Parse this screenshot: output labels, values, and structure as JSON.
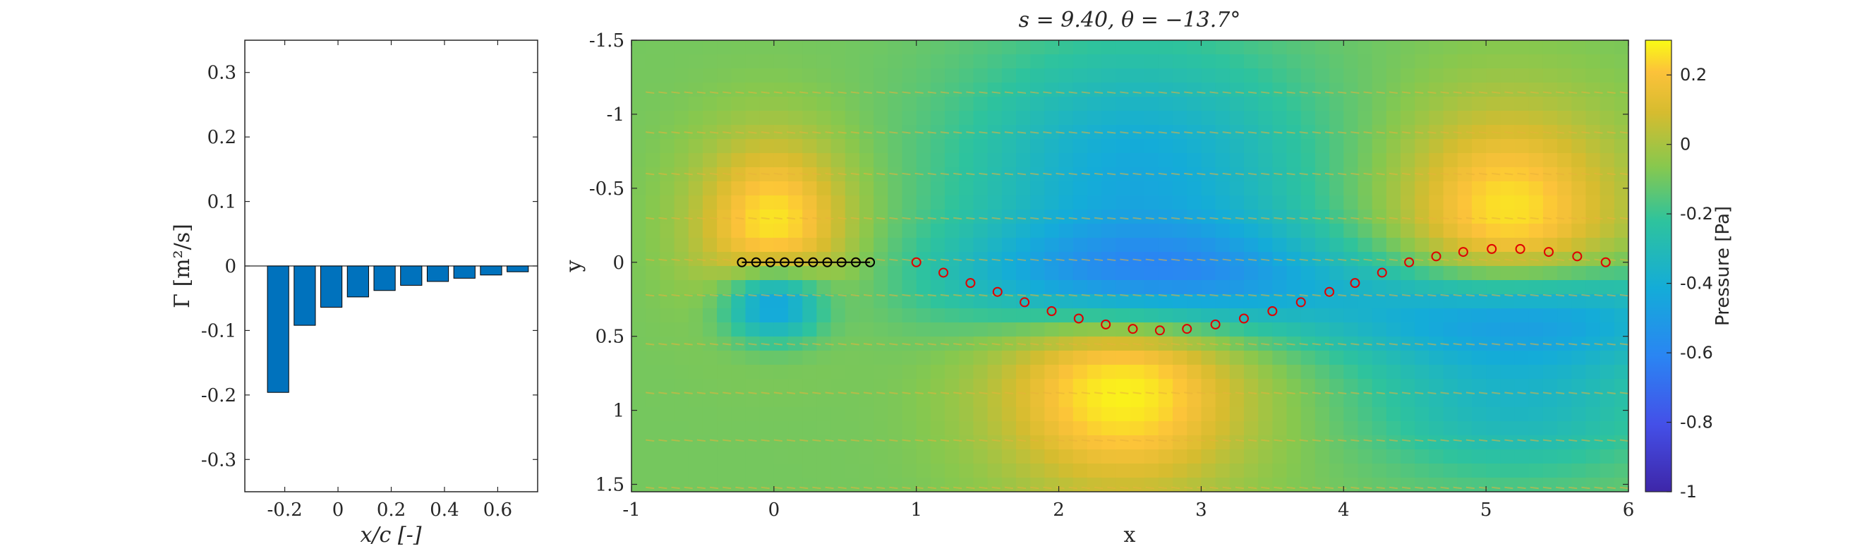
{
  "chart_data": [
    {
      "type": "bar",
      "title": "",
      "xlabel": "x/c [-]",
      "ylabel": "Γ [m²/s]",
      "xlim": [
        -0.35,
        0.75
      ],
      "ylim": [
        -0.35,
        0.35
      ],
      "xticks": [
        "-0.2",
        "0",
        "0.2",
        "0.4",
        "0.6"
      ],
      "xtick_values": [
        -0.2,
        0,
        0.2,
        0.4,
        0.6
      ],
      "yticks": [
        "0.3",
        "0.2",
        "0.1",
        "0",
        "-0.1",
        "-0.2",
        "-0.3"
      ],
      "ytick_values": [
        0.3,
        0.2,
        0.1,
        0,
        -0.1,
        -0.2,
        -0.3
      ],
      "bar_color": "#0072BD",
      "x": [
        -0.225,
        -0.125,
        -0.025,
        0.075,
        0.175,
        0.275,
        0.375,
        0.475,
        0.575,
        0.675
      ],
      "values": [
        -0.196,
        -0.092,
        -0.064,
        -0.048,
        -0.038,
        -0.03,
        -0.024,
        -0.019,
        -0.014,
        -0.009
      ],
      "grid": false
    },
    {
      "type": "heatmap",
      "title": "s = 9.40, θ = −13.7°",
      "xlabel": "x",
      "ylabel": "y",
      "xlim": [
        -1,
        6
      ],
      "ylim": [
        -1.5,
        1.55
      ],
      "y_reversed": true,
      "xticks": [
        "-1",
        "0",
        "1",
        "2",
        "3",
        "4",
        "5",
        "6"
      ],
      "xtick_values": [
        -1,
        0,
        1,
        2,
        3,
        4,
        5,
        6
      ],
      "yticks": [
        "-1.5",
        "-1",
        "-0.5",
        "0",
        "0.5",
        "1",
        "1.5"
      ],
      "ytick_values": [
        -1.5,
        -1,
        -0.5,
        0,
        0.5,
        1,
        1.5
      ],
      "colorbar": {
        "label": "Pressure [Pa]",
        "range": [
          -1,
          0.3
        ],
        "ticks": [
          "0.2",
          "0",
          "-0.2",
          "-0.4",
          "-0.6",
          "-0.8",
          "-1"
        ],
        "tick_values": [
          0.2,
          0,
          -0.2,
          -0.4,
          -0.6,
          -0.8,
          -1
        ]
      },
      "plate_points": {
        "color": "#000000",
        "x": [
          -0.225,
          -0.125,
          -0.025,
          0.075,
          0.175,
          0.275,
          0.375,
          0.475,
          0.575,
          0.675
        ],
        "y": [
          0,
          0,
          0,
          0,
          0,
          0,
          0,
          0,
          0,
          0
        ]
      },
      "wake_points": {
        "color": "#E00000",
        "x": [
          1.0,
          1.19,
          1.38,
          1.57,
          1.76,
          1.95,
          2.14,
          2.33,
          2.52,
          2.71,
          2.9,
          3.1,
          3.3,
          3.5,
          3.7,
          3.9,
          4.08,
          4.27,
          4.46,
          4.65,
          4.84,
          5.04,
          5.24,
          5.44,
          5.64,
          5.84
        ],
        "y": [
          0.0,
          0.07,
          0.14,
          0.2,
          0.27,
          0.33,
          0.38,
          0.42,
          0.45,
          0.46,
          0.45,
          0.42,
          0.38,
          0.33,
          0.27,
          0.2,
          0.14,
          0.07,
          0.0,
          -0.04,
          -0.07,
          -0.09,
          -0.09,
          -0.07,
          -0.04,
          0.0
        ]
      },
      "pressure_field": [
        {
          "x": 0.0,
          "y": -0.25,
          "amp": 0.35,
          "sx": 0.55,
          "sy": 0.6
        },
        {
          "x": 0.0,
          "y": 0.28,
          "amp": -0.5,
          "sx": 0.35,
          "sy": 0.25
        },
        {
          "x": 2.55,
          "y": -0.55,
          "amp": -0.35,
          "sx": 1.2,
          "sy": 0.9
        },
        {
          "x": 2.45,
          "y": 0.8,
          "amp": 0.4,
          "sx": 0.9,
          "sy": 0.75
        },
        {
          "x": 2.6,
          "y": 0.12,
          "amp": -0.45,
          "sx": 1.3,
          "sy": 0.35
        },
        {
          "x": 5.15,
          "y": -0.3,
          "amp": 0.35,
          "sx": 0.8,
          "sy": 0.75
        },
        {
          "x": 5.2,
          "y": 0.35,
          "amp": -0.45,
          "sx": 1.2,
          "sy": 0.35
        },
        {
          "x": 5.2,
          "y": 0.95,
          "amp": -0.25,
          "sx": 1.0,
          "sy": 0.5
        }
      ]
    }
  ]
}
